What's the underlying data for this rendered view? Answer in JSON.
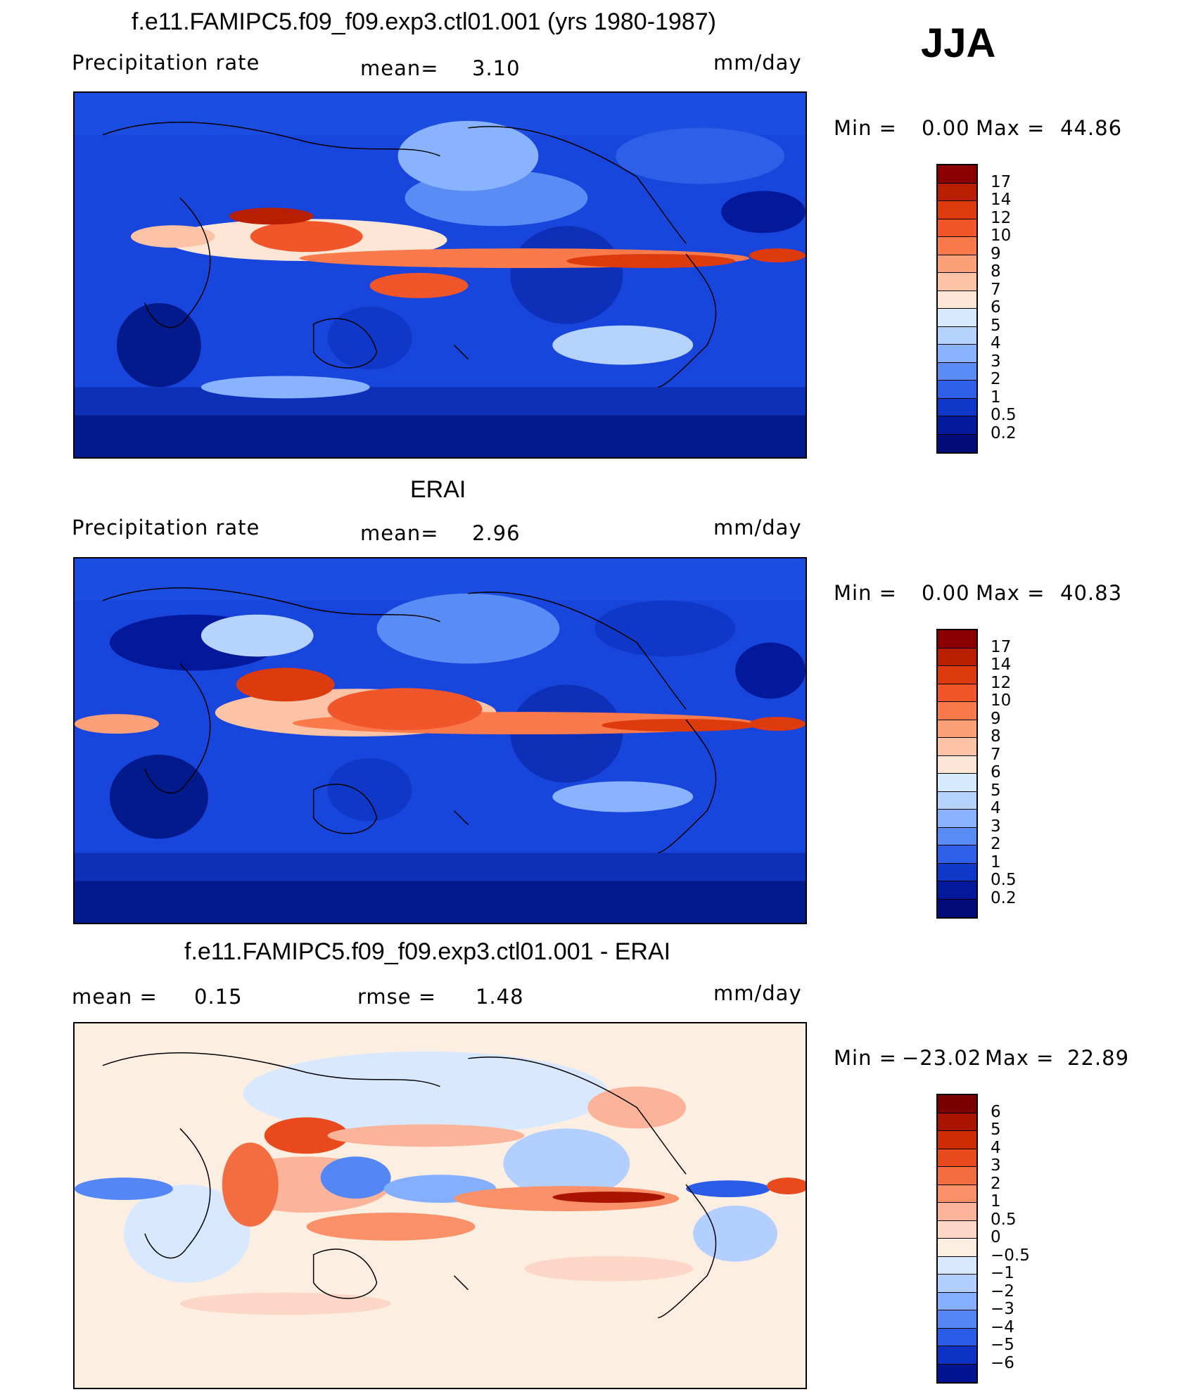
{
  "season": "JJA",
  "panels": [
    {
      "title": "f.e11.FAMIPC5.f09_f09.exp3.ctl01.001 (yrs 1980-1987)",
      "left_label": "Precipitation  rate",
      "mid_label": "mean=",
      "mid_value": "3.10",
      "units": "mm/day",
      "min_label": "Min  =",
      "min_value": "0.00",
      "max_label": "Max  =",
      "max_value": "44.86",
      "colorbar": {
        "labels": [
          "17",
          "14",
          "12",
          "10",
          "9",
          "8",
          "7",
          "6",
          "5",
          "4",
          "3",
          "2",
          "1",
          "0.5",
          "0.2"
        ],
        "colors": [
          "#8b0000",
          "#b81e00",
          "#dd3a0e",
          "#f0562a",
          "#fa7a4c",
          "#fca07a",
          "#fdc3a6",
          "#fde6d6",
          "#d6eaff",
          "#b6d2ff",
          "#8ab3ff",
          "#5a8cf5",
          "#2f5fe8",
          "#1038c8",
          "#03189a",
          "#020c78"
        ]
      }
    },
    {
      "title": "ERAI",
      "left_label": "Precipitation  rate",
      "mid_label": "mean=",
      "mid_value": "2.96",
      "units": "mm/day",
      "min_label": "Min  =",
      "min_value": "0.00",
      "max_label": "Max  =",
      "max_value": "40.83",
      "colorbar": {
        "labels": [
          "17",
          "14",
          "12",
          "10",
          "9",
          "8",
          "7",
          "6",
          "5",
          "4",
          "3",
          "2",
          "1",
          "0.5",
          "0.2"
        ],
        "colors": [
          "#8b0000",
          "#b81e00",
          "#dd3a0e",
          "#f0562a",
          "#fa7a4c",
          "#fca07a",
          "#fdc3a6",
          "#fde6d6",
          "#d6eaff",
          "#b6d2ff",
          "#8ab3ff",
          "#5a8cf5",
          "#2f5fe8",
          "#1038c8",
          "#03189a",
          "#020c78"
        ]
      }
    },
    {
      "title": "f.e11.FAMIPC5.f09_f09.exp3.ctl01.001 - ERAI",
      "left_label": "mean  =",
      "left_value": "0.15",
      "mid_label": "rmse  =",
      "mid_value": "1.48",
      "units": "mm/day",
      "min_label": "Min  =",
      "min_value": "−23.02",
      "max_label": "Max  =",
      "max_value": "22.89",
      "colorbar": {
        "labels": [
          "6",
          "5",
          "4",
          "3",
          "2",
          "1",
          "0.5",
          "0",
          "−0.5",
          "−1",
          "−2",
          "−3",
          "−4",
          "−5",
          "−6"
        ],
        "colors": [
          "#7a0000",
          "#a81400",
          "#cf2c06",
          "#e84a1e",
          "#f46d40",
          "#f99068",
          "#fbb49a",
          "#fcd6c6",
          "#fdeee2",
          "#d8e9ff",
          "#b3cfff",
          "#84aeff",
          "#5586f5",
          "#2a5ce8",
          "#0c33c4",
          "#021491"
        ]
      }
    }
  ]
}
